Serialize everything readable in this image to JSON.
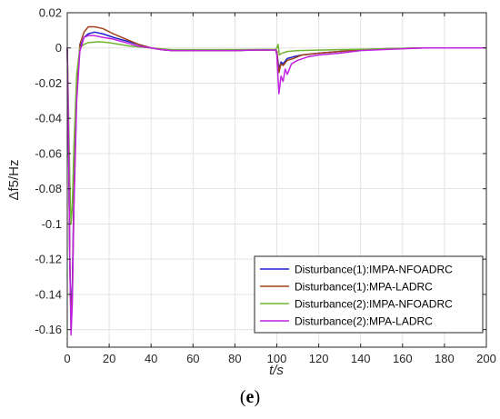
{
  "figure": {
    "panel_label": "e"
  },
  "chart_data": {
    "type": "line",
    "xlabel": "t/s",
    "ylabel": "Δf5/Hz",
    "xlim": [
      0,
      200
    ],
    "ylim": [
      -0.17,
      0.02
    ],
    "x_ticks": [
      0,
      20,
      40,
      60,
      80,
      100,
      120,
      140,
      160,
      180,
      200
    ],
    "y_ticks": [
      0.02,
      0,
      -0.02,
      -0.04,
      -0.06,
      -0.08,
      -0.1,
      -0.12,
      -0.14,
      -0.16
    ],
    "y_tick_labels": [
      "0.02",
      "0",
      "-0.02",
      "-0.04",
      "-0.06",
      "-0.08",
      "-0.1",
      "-0.12",
      "-0.14",
      "-0.16"
    ],
    "grid": true,
    "legend_position": "bottom-right",
    "series": [
      {
        "name": "Disturbance(1):IMPA-NFOADRC",
        "color": "#1f1fcf",
        "points": [
          [
            0,
            0
          ],
          [
            0.6,
            -0.05
          ],
          [
            1.2,
            -0.12
          ],
          [
            1.8,
            -0.155
          ],
          [
            2.4,
            -0.135
          ],
          [
            3.2,
            -0.08
          ],
          [
            4.5,
            -0.025
          ],
          [
            6,
            0
          ],
          [
            8,
            0.006
          ],
          [
            10,
            0.008
          ],
          [
            13,
            0.009
          ],
          [
            17,
            0.008
          ],
          [
            22,
            0.006
          ],
          [
            28,
            0.004
          ],
          [
            34,
            0.002
          ],
          [
            40,
            0
          ],
          [
            45,
            -0.001
          ],
          [
            50,
            -0.0015
          ],
          [
            60,
            -0.0015
          ],
          [
            70,
            -0.0015
          ],
          [
            80,
            -0.0015
          ],
          [
            90,
            -0.0012
          ],
          [
            99.5,
            -0.0012
          ],
          [
            100,
            -0.002
          ],
          [
            101,
            -0.012
          ],
          [
            102,
            -0.008
          ],
          [
            103,
            -0.009
          ],
          [
            105,
            -0.006
          ],
          [
            108,
            -0.005
          ],
          [
            112,
            -0.004
          ],
          [
            120,
            -0.003
          ],
          [
            130,
            -0.002
          ],
          [
            140,
            -0.001
          ],
          [
            150,
            -0.0005
          ],
          [
            170,
            0
          ],
          [
            200,
            0
          ]
        ]
      },
      {
        "name": "Disturbance(1):MPA-LADRC",
        "color": "#a0401a",
        "points": [
          [
            0,
            0
          ],
          [
            0.6,
            -0.05
          ],
          [
            1.2,
            -0.12
          ],
          [
            1.8,
            -0.16
          ],
          [
            2.4,
            -0.14
          ],
          [
            3.2,
            -0.085
          ],
          [
            4.5,
            -0.025
          ],
          [
            6,
            0.002
          ],
          [
            8,
            0.009
          ],
          [
            10,
            0.012
          ],
          [
            13,
            0.012
          ],
          [
            17,
            0.011
          ],
          [
            22,
            0.008
          ],
          [
            28,
            0.005
          ],
          [
            34,
            0.002
          ],
          [
            40,
            0
          ],
          [
            45,
            -0.001
          ],
          [
            50,
            -0.0015
          ],
          [
            60,
            -0.0015
          ],
          [
            70,
            -0.0015
          ],
          [
            80,
            -0.0015
          ],
          [
            90,
            -0.0012
          ],
          [
            99.5,
            -0.0012
          ],
          [
            100,
            -0.002
          ],
          [
            101,
            -0.014
          ],
          [
            102,
            -0.009
          ],
          [
            103,
            -0.01
          ],
          [
            105,
            -0.007
          ],
          [
            108,
            -0.006
          ],
          [
            112,
            -0.004
          ],
          [
            120,
            -0.003
          ],
          [
            130,
            -0.002
          ],
          [
            140,
            -0.001
          ],
          [
            150,
            -0.0005
          ],
          [
            170,
            0
          ],
          [
            200,
            0
          ]
        ]
      },
      {
        "name": "Disturbance(2):IMPA-NFOADRC",
        "color": "#70b530",
        "points": [
          [
            0,
            0
          ],
          [
            0.6,
            -0.035
          ],
          [
            1.2,
            -0.075
          ],
          [
            1.8,
            -0.1
          ],
          [
            2.4,
            -0.09
          ],
          [
            3.2,
            -0.055
          ],
          [
            4.5,
            -0.015
          ],
          [
            6,
            0
          ],
          [
            8,
            0.002
          ],
          [
            10,
            0.003
          ],
          [
            15,
            0.0035
          ],
          [
            20,
            0.003
          ],
          [
            25,
            0.002
          ],
          [
            30,
            0.001
          ],
          [
            40,
            0
          ],
          [
            50,
            -0.001
          ],
          [
            70,
            -0.001
          ],
          [
            99.5,
            -0.0008
          ],
          [
            100,
            0
          ],
          [
            100.6,
            0.002
          ],
          [
            101.2,
            -0.004
          ],
          [
            102.5,
            -0.003
          ],
          [
            105,
            -0.002
          ],
          [
            110,
            -0.0015
          ],
          [
            130,
            -0.001
          ],
          [
            150,
            -0.0005
          ],
          [
            170,
            0
          ],
          [
            200,
            0
          ]
        ]
      },
      {
        "name": "Disturbance(2):MPA-LADRC",
        "color": "#c020e0",
        "points": [
          [
            0,
            0
          ],
          [
            0.6,
            -0.05
          ],
          [
            1.2,
            -0.12
          ],
          [
            1.8,
            -0.163
          ],
          [
            2.4,
            -0.145
          ],
          [
            3.2,
            -0.09
          ],
          [
            4.5,
            -0.03
          ],
          [
            6,
            -0.002
          ],
          [
            8,
            0.006
          ],
          [
            10,
            0.007
          ],
          [
            13,
            0.007
          ],
          [
            17,
            0.006
          ],
          [
            22,
            0.005
          ],
          [
            28,
            0.003
          ],
          [
            34,
            0.001
          ],
          [
            40,
            0
          ],
          [
            45,
            -0.001
          ],
          [
            50,
            -0.0015
          ],
          [
            60,
            -0.0015
          ],
          [
            70,
            -0.0015
          ],
          [
            80,
            -0.0015
          ],
          [
            90,
            -0.0012
          ],
          [
            99.5,
            -0.0012
          ],
          [
            100,
            -0.004
          ],
          [
            101,
            -0.026
          ],
          [
            102,
            -0.016
          ],
          [
            103,
            -0.019
          ],
          [
            104,
            -0.012
          ],
          [
            105,
            -0.015
          ],
          [
            107,
            -0.009
          ],
          [
            110,
            -0.007
          ],
          [
            115,
            -0.005
          ],
          [
            120,
            -0.004
          ],
          [
            130,
            -0.003
          ],
          [
            140,
            -0.0015
          ],
          [
            150,
            -0.001
          ],
          [
            170,
            0
          ],
          [
            200,
            0
          ]
        ]
      }
    ]
  }
}
